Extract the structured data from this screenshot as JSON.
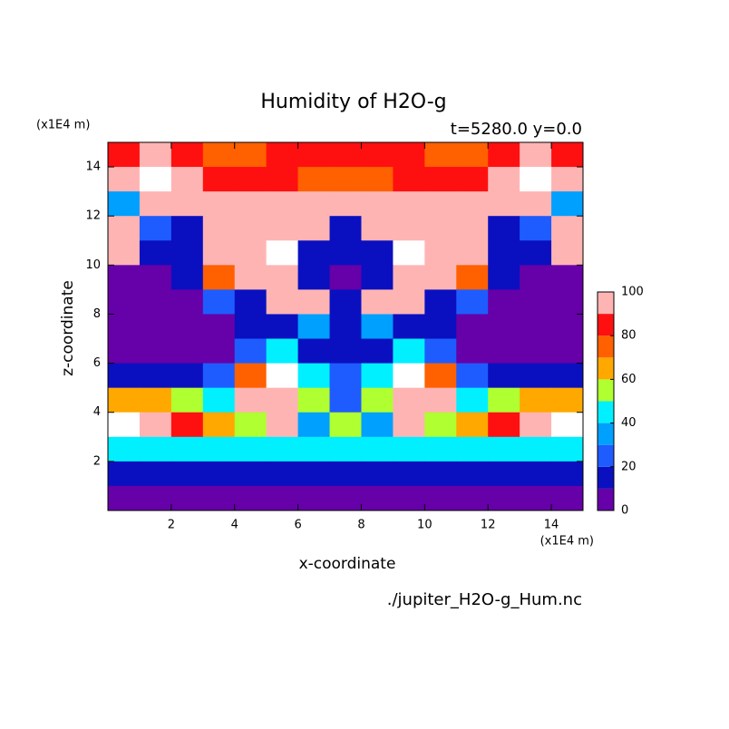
{
  "chart_data": {
    "type": "contour",
    "title": "Humidity of H2O-g",
    "subtitle": "t=5280.0 y=0.0",
    "x_label": "x-coordinate",
    "y_label": "z-coordinate",
    "x_unit": "(x1E4 m)",
    "y_unit": "(x1E4 m)",
    "source": "./jupiter_H2O-g_Hum.nc",
    "xlim": [
      0,
      15
    ],
    "ylim": [
      0,
      15
    ],
    "xticks": [
      2,
      4,
      6,
      8,
      10,
      12,
      14
    ],
    "yticks": [
      2,
      4,
      6,
      8,
      10,
      12,
      14
    ],
    "x": [
      0.5,
      1.5,
      2.5,
      3.5,
      4.5,
      5.5,
      6.5,
      7.5,
      8.5,
      9.5,
      10.5,
      11.5,
      12.5,
      13.5,
      14.5
    ],
    "y": [
      14.5,
      13.5,
      12.5,
      11.5,
      10.5,
      9.5,
      8.5,
      7.5,
      6.5,
      5.5,
      4.5,
      3.5,
      2.5,
      1.5,
      0.5
    ],
    "z": [
      [
        85,
        95,
        85,
        75,
        75,
        85,
        85,
        85,
        85,
        85,
        75,
        75,
        85,
        95,
        85
      ],
      [
        95,
        105,
        95,
        85,
        85,
        80,
        70,
        70,
        70,
        80,
        85,
        85,
        95,
        105,
        95
      ],
      [
        35,
        95,
        95,
        95,
        95,
        95,
        95,
        95,
        95,
        95,
        95,
        95,
        95,
        95,
        35
      ],
      [
        95,
        25,
        15,
        95,
        95,
        95,
        95,
        15,
        95,
        95,
        95,
        95,
        15,
        25,
        95
      ],
      [
        95,
        15,
        15,
        95,
        95,
        105,
        15,
        15,
        15,
        105,
        95,
        95,
        15,
        15,
        95
      ],
      [
        5,
        5,
        15,
        70,
        95,
        95,
        15,
        5,
        15,
        95,
        95,
        70,
        15,
        5,
        5
      ],
      [
        5,
        5,
        5,
        25,
        15,
        95,
        95,
        15,
        95,
        95,
        15,
        25,
        5,
        5,
        5
      ],
      [
        5,
        5,
        5,
        5,
        15,
        15,
        35,
        15,
        35,
        15,
        15,
        5,
        5,
        5,
        5
      ],
      [
        5,
        5,
        5,
        5,
        25,
        45,
        15,
        15,
        15,
        45,
        25,
        5,
        5,
        5,
        5
      ],
      [
        15,
        15,
        15,
        25,
        75,
        105,
        45,
        25,
        45,
        105,
        75,
        25,
        15,
        15,
        15
      ],
      [
        65,
        65,
        55,
        45,
        95,
        95,
        55,
        25,
        55,
        95,
        95,
        45,
        55,
        65,
        65
      ],
      [
        105,
        95,
        85,
        65,
        55,
        95,
        35,
        55,
        35,
        95,
        55,
        65,
        85,
        95,
        105
      ],
      [
        45,
        45,
        45,
        45,
        45,
        45,
        45,
        45,
        45,
        45,
        45,
        45,
        45,
        45,
        45
      ],
      [
        15,
        15,
        15,
        15,
        15,
        15,
        15,
        15,
        15,
        15,
        15,
        15,
        15,
        15,
        15
      ],
      [
        5,
        5,
        5,
        5,
        5,
        5,
        5,
        5,
        5,
        5,
        5,
        5,
        5,
        5,
        5
      ]
    ],
    "levels": [
      0,
      10,
      20,
      30,
      40,
      50,
      60,
      70,
      80,
      90,
      100
    ],
    "colors": [
      "#6600a8",
      "#0a10c0",
      "#1e5cff",
      "#00a0ff",
      "#00f0ff",
      "#b0ff30",
      "#ffa800",
      "#ff6000",
      "#ff1010",
      "#ffb4b4"
    ],
    "above_color": "#ffffff",
    "colorbar_ticks": [
      0,
      20,
      40,
      60,
      80,
      100
    ]
  }
}
